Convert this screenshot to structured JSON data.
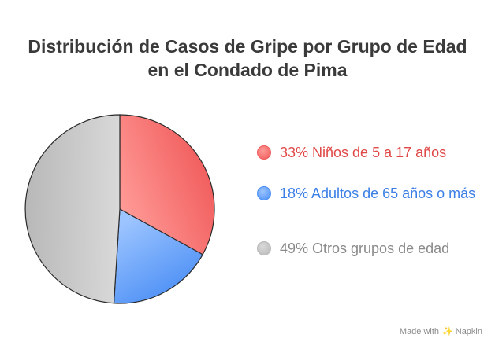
{
  "chart_data": {
    "type": "pie",
    "title_lines": [
      "Distribución de Casos de Gripe por Grupo de Edad",
      "en el Condado de Pima"
    ],
    "slices": [
      {
        "label": "33% Niños de 5 a 17 años",
        "value": 33,
        "color": "#f05a5a",
        "color_light": "#ff9a96",
        "text_color": "#e04848"
      },
      {
        "label": "18% Adultos de 65 años o más",
        "value": 18,
        "color": "#4a8ef5",
        "color_light": "#9cc4ff",
        "text_color": "#3b7fe6"
      },
      {
        "label": "49% Otros grupos de edad",
        "value": 49,
        "color": "#b8b8b8",
        "color_light": "#d9d9d9",
        "text_color": "#8a8a8a"
      }
    ]
  },
  "footer": {
    "made_with": "Made with",
    "brand": "Napkin",
    "icon": "napkin-logo-icon"
  }
}
